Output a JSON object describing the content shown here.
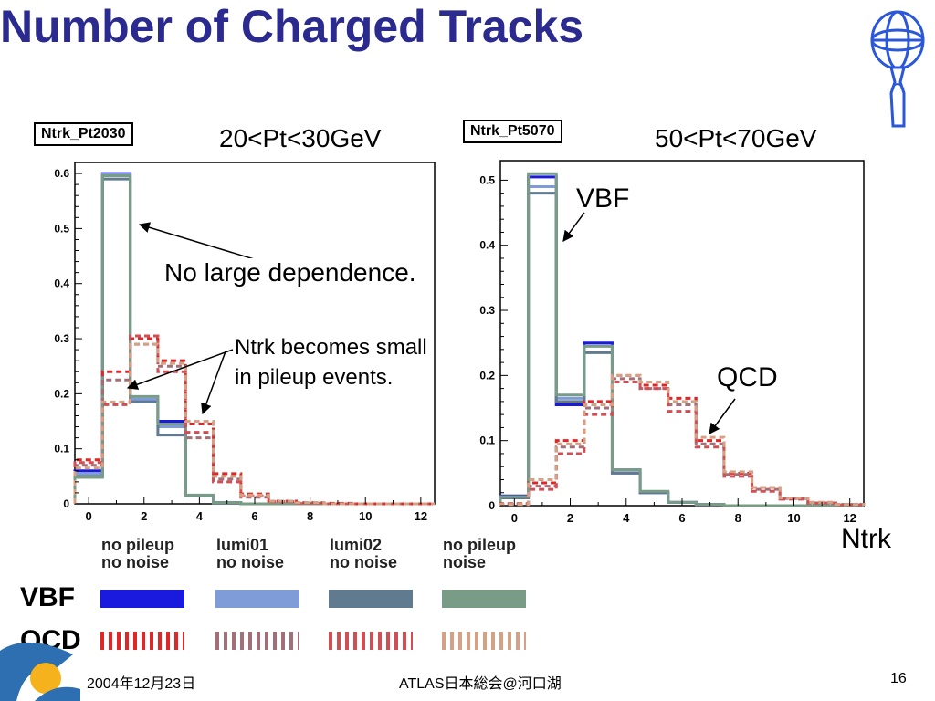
{
  "title": "Number of Charged Tracks",
  "page_number": "16",
  "footer_date": "2004年12月23日",
  "footer_meeting": "ATLAS日本総会@河口湖",
  "colors": {
    "title": "#2a2a8f",
    "vbf_no_pileup": "#1a1adf",
    "vbf_lumi01": "#7f9cd6",
    "vbf_lumi02": "#607b90",
    "vbf_noise": "#799c86",
    "qcd_no_pileup": "#e02626",
    "qcd_lumi01": "#a26e77",
    "qcd_lumi02": "#cf4f55",
    "qcd_noise": "#d4a184"
  },
  "legend": {
    "no_pileup": "no pileup\nno noise",
    "lumi01": "lumi01\nno noise",
    "lumi02": "lumi02\nno noise",
    "noise": "no pileup\nnoise",
    "vbf_label": "VBF",
    "qcd_label": "QCD"
  },
  "left_panel": {
    "histo_name": "Ntrk_Pt2030",
    "range_label": "20<Pt<30GeV",
    "note1": "No large dependence.",
    "note2": "Ntrk becomes small",
    "note3": "in pileup events."
  },
  "right_panel": {
    "histo_name": "Ntrk_Pt5070",
    "range_label": "50<Pt<70GeV",
    "vbf_tag": "VBF",
    "qcd_tag": "QCD",
    "x_label": "Ntrk"
  },
  "chart_data": [
    {
      "type": "step",
      "name": "Ntrk_Pt2030",
      "xlabel": "",
      "ylabel": "",
      "xlim": [
        -0.5,
        12.5
      ],
      "ylim": [
        0,
        0.62
      ],
      "xticks": [
        0,
        2,
        4,
        6,
        8,
        10,
        12
      ],
      "yticks": [
        0,
        0.1,
        0.2,
        0.3,
        0.4,
        0.5,
        0.6
      ],
      "ytick_labels": [
        "0",
        "0.1",
        "0.2",
        "0.3",
        "0.4",
        "0.5",
        "0.6"
      ],
      "bin_edges": [
        -0.5,
        0.5,
        1.5,
        2.5,
        3.5,
        4.5,
        5.5,
        6.5,
        7.5,
        8.5,
        9.5,
        10.5,
        11.5,
        12.5
      ],
      "series": [
        {
          "name": "VBF no pileup no noise",
          "style": "solid",
          "color_key": "vbf_no_pileup",
          "values": [
            0.06,
            0.6,
            0.19,
            0.15,
            0.015,
            0.002,
            0,
            0,
            0,
            0,
            0,
            0,
            0
          ]
        },
        {
          "name": "VBF lumi01 no noise",
          "style": "solid",
          "color_key": "vbf_lumi01",
          "values": [
            0.055,
            0.598,
            0.19,
            0.14,
            0.015,
            0.002,
            0,
            0,
            0,
            0,
            0,
            0,
            0
          ]
        },
        {
          "name": "VBF lumi02 no noise",
          "style": "solid",
          "color_key": "vbf_lumi02",
          "values": [
            0.05,
            0.59,
            0.185,
            0.125,
            0.015,
            0.002,
            0,
            0,
            0,
            0,
            0,
            0,
            0
          ]
        },
        {
          "name": "VBF no pileup noise",
          "style": "solid",
          "color_key": "vbf_noise",
          "values": [
            0.048,
            0.596,
            0.195,
            0.145,
            0.016,
            0.002,
            0,
            0,
            0,
            0,
            0,
            0,
            0
          ]
        },
        {
          "name": "QCD no pileup no noise",
          "style": "dashed",
          "color_key": "qcd_no_pileup",
          "values": [
            0.08,
            0.24,
            0.3,
            0.26,
            0.145,
            0.055,
            0.018,
            0.005,
            0.002,
            0.001,
            0,
            0,
            0
          ]
        },
        {
          "name": "QCD lumi01 no noise",
          "style": "dashed",
          "color_key": "qcd_lumi01",
          "values": [
            0.07,
            0.225,
            0.29,
            0.25,
            0.12,
            0.045,
            0.012,
            0.004,
            0.001,
            0,
            0,
            0,
            0
          ]
        },
        {
          "name": "QCD lumi02 no noise",
          "style": "dashed",
          "color_key": "qcd_lumi02",
          "values": [
            0.075,
            0.18,
            0.305,
            0.24,
            0.13,
            0.04,
            0.014,
            0.004,
            0.001,
            0,
            0,
            0,
            0
          ]
        },
        {
          "name": "QCD no pileup noise",
          "style": "dashed",
          "color_key": "qcd_noise",
          "values": [
            0.065,
            0.185,
            0.29,
            0.255,
            0.15,
            0.05,
            0.016,
            0.005,
            0.002,
            0,
            0,
            0,
            0
          ]
        }
      ]
    },
    {
      "type": "step",
      "name": "Ntrk_Pt5070",
      "xlabel": "Ntrk",
      "ylabel": "",
      "xlim": [
        -0.5,
        12.5
      ],
      "ylim": [
        0,
        0.53
      ],
      "xticks": [
        0,
        2,
        4,
        6,
        8,
        10,
        12
      ],
      "yticks": [
        0,
        0.1,
        0.2,
        0.3,
        0.4,
        0.5
      ],
      "ytick_labels": [
        "0",
        "0.1",
        "0.2",
        "0.3",
        "0.4",
        "0.5"
      ],
      "bin_edges": [
        -0.5,
        0.5,
        1.5,
        2.5,
        3.5,
        4.5,
        5.5,
        6.5,
        7.5,
        8.5,
        9.5,
        10.5,
        11.5,
        12.5
      ],
      "series": [
        {
          "name": "VBF no pileup no noise",
          "style": "solid",
          "color_key": "vbf_no_pileup",
          "values": [
            0.015,
            0.505,
            0.155,
            0.25,
            0.055,
            0.02,
            0.005,
            0.002,
            0,
            0,
            0,
            0,
            0
          ]
        },
        {
          "name": "VBF lumi01 no noise",
          "style": "solid",
          "color_key": "vbf_lumi01",
          "values": [
            0.012,
            0.49,
            0.165,
            0.245,
            0.05,
            0.02,
            0.005,
            0.002,
            0,
            0,
            0,
            0,
            0
          ]
        },
        {
          "name": "VBF lumi02 no noise",
          "style": "solid",
          "color_key": "vbf_lumi02",
          "values": [
            0.012,
            0.48,
            0.16,
            0.235,
            0.05,
            0.02,
            0.005,
            0.002,
            0,
            0,
            0,
            0,
            0
          ]
        },
        {
          "name": "VBF no pileup noise",
          "style": "solid",
          "color_key": "vbf_noise",
          "values": [
            0.014,
            0.51,
            0.17,
            0.245,
            0.055,
            0.022,
            0.005,
            0.002,
            0,
            0,
            0,
            0,
            0
          ]
        },
        {
          "name": "QCD no pileup no noise",
          "style": "dashed",
          "color_key": "qcd_no_pileup",
          "values": [
            0.003,
            0.035,
            0.1,
            0.16,
            0.2,
            0.185,
            0.165,
            0.1,
            0.05,
            0.028,
            0.012,
            0.005,
            0.002
          ]
        },
        {
          "name": "QCD lumi01 no noise",
          "style": "dashed",
          "color_key": "qcd_lumi01",
          "values": [
            0.003,
            0.03,
            0.09,
            0.15,
            0.195,
            0.18,
            0.155,
            0.095,
            0.048,
            0.025,
            0.011,
            0.004,
            0.002
          ]
        },
        {
          "name": "QCD lumi02 no noise",
          "style": "dashed",
          "color_key": "qcd_lumi02",
          "values": [
            0.003,
            0.025,
            0.08,
            0.14,
            0.19,
            0.18,
            0.145,
            0.09,
            0.045,
            0.022,
            0.01,
            0.004,
            0.001
          ]
        },
        {
          "name": "QCD no pileup noise",
          "style": "dashed",
          "color_key": "qcd_noise",
          "values": [
            0.002,
            0.04,
            0.095,
            0.155,
            0.2,
            0.19,
            0.16,
            0.105,
            0.052,
            0.028,
            0.012,
            0.005,
            0.002
          ]
        }
      ]
    }
  ]
}
